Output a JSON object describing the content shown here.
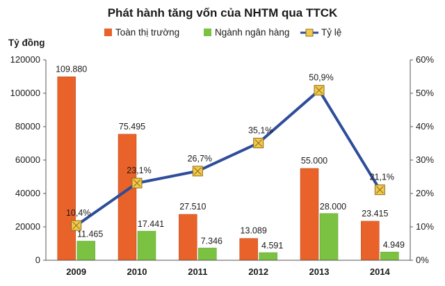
{
  "chart_data": {
    "type": "bar",
    "title": "Phát hành tăng vốn của NHTM qua TTCK",
    "ylabel": "Tỷ đồng",
    "ylim": [
      0,
      120000
    ],
    "y2lim": [
      0,
      60
    ],
    "yticks": [
      "0",
      "20000",
      "40000",
      "60000",
      "80000",
      "100000",
      "120000"
    ],
    "y2ticks": [
      "0%",
      "10%",
      "20%",
      "30%",
      "40%",
      "50%",
      "60%"
    ],
    "categories": [
      "2009",
      "2010",
      "2011",
      "2012",
      "2013",
      "2014"
    ],
    "legend_position": "top",
    "grid": false,
    "series": [
      {
        "name": "Toàn thị trường",
        "kind": "bar",
        "color": "#E8622A",
        "values": [
          109880,
          75495,
          27510,
          13089,
          55000,
          23415
        ],
        "labels": [
          "109.880",
          "75.495",
          "27.510",
          "13.089",
          "55.000",
          "23.415"
        ]
      },
      {
        "name": "Ngành ngân hàng",
        "kind": "bar",
        "color": "#7CC242",
        "values": [
          11465,
          17441,
          7346,
          4591,
          28000,
          4949
        ],
        "labels": [
          "11.465",
          "17.441",
          "7.346",
          "4.591",
          "28.000",
          "4.949"
        ]
      },
      {
        "name": "Tỷ lệ",
        "kind": "line",
        "axis": "right",
        "color": "#2E4D9A",
        "marker_color": "#F2C94C",
        "values": [
          10.4,
          23.1,
          26.7,
          35.1,
          50.9,
          21.1
        ],
        "labels": [
          "10,4%",
          "23,1%",
          "26,7%",
          "35,1%",
          "50,9%",
          "21,1%"
        ]
      }
    ]
  }
}
